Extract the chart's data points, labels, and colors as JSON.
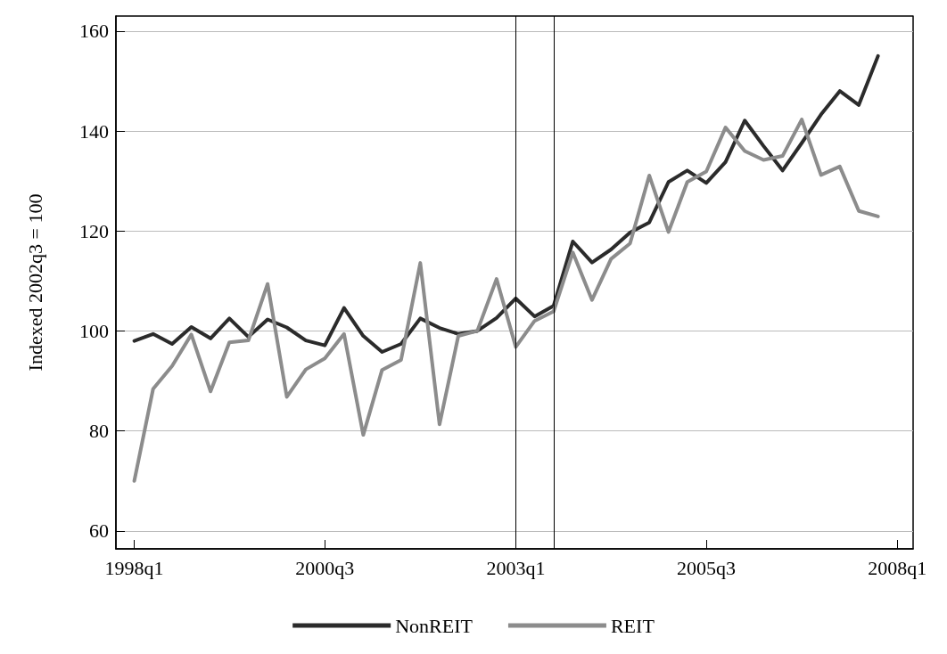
{
  "chart_data": {
    "type": "line",
    "ylabel": "Indexed 2002q3 = 100",
    "x": [
      "1998-01",
      "1998-04",
      "1998-07",
      "1998-10",
      "1999-01",
      "1999-04",
      "1999-07",
      "1999-10",
      "2000-01",
      "2000-04",
      "2000-07",
      "2000-10",
      "2001-01",
      "2001-04",
      "2001-07",
      "2001-10",
      "2002-01",
      "2002-04",
      "2002-07",
      "2002-10",
      "2003-01",
      "2003-04",
      "2003-07",
      "2003-10",
      "2004-01",
      "2004-04",
      "2004-07",
      "2004-10",
      "2005-01",
      "2005-04",
      "2005-07",
      "2005-10",
      "2006-01",
      "2006-04",
      "2006-07",
      "2006-10",
      "2007-01",
      "2007-04",
      "2007-07",
      "2007-10"
    ],
    "series": [
      {
        "name": "NonREIT",
        "color": "#2b2b2b",
        "values": [
          98.0,
          99.4,
          97.4,
          100.8,
          98.5,
          102.5,
          98.8,
          102.3,
          100.7,
          98.1,
          97.1,
          104.6,
          99.0,
          95.8,
          97.4,
          102.5,
          100.6,
          99.4,
          100.0,
          102.6,
          106.5,
          102.9,
          105.0,
          117.9,
          113.7,
          116.3,
          119.7,
          121.7,
          129.8,
          132.1,
          129.6,
          133.8,
          142.1,
          137.0,
          132.1,
          137.6,
          143.3,
          148.0,
          145.2,
          155.0
        ]
      },
      {
        "name": "REIT",
        "color": "#8c8c8c",
        "values": [
          70.0,
          88.4,
          93.0,
          99.3,
          87.9,
          97.7,
          98.1,
          109.4,
          86.8,
          92.3,
          94.5,
          99.4,
          79.2,
          92.2,
          94.2,
          113.6,
          81.3,
          99.0,
          100.0,
          110.4,
          96.8,
          102.0,
          103.9,
          115.7,
          106.2,
          114.4,
          117.5,
          131.1,
          119.8,
          129.8,
          131.9,
          140.7,
          136.0,
          134.2,
          135.0,
          142.3,
          131.2,
          132.9,
          124.0,
          122.9
        ]
      }
    ],
    "xlim": [
      "1997-10-05",
      "2008-03-17"
    ],
    "xticks": [
      {
        "value": "1998-01",
        "label": "1998q1"
      },
      {
        "value": "2000-07",
        "label": "2000q3"
      },
      {
        "value": "2003-01",
        "label": "2003q1"
      },
      {
        "value": "2005-07",
        "label": "2005q3"
      },
      {
        "value": "2008-01",
        "label": "2008q1"
      }
    ],
    "ylim": [
      56.4,
      163
    ],
    "yticks": [
      60,
      80,
      100,
      120,
      140,
      160
    ],
    "ref_lines": [
      {
        "axis": "x",
        "value": "2003-01",
        "color": "#000000"
      },
      {
        "axis": "x",
        "value": "2003-07",
        "color": "#000000"
      }
    ],
    "grid": "y",
    "legend": "bottom",
    "marker": "none",
    "line_style": "solid"
  }
}
